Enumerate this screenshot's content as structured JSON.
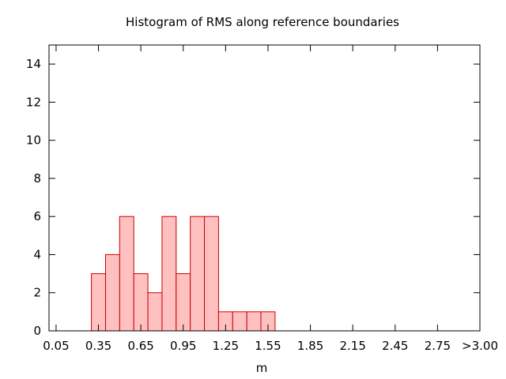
{
  "chart_data": {
    "type": "bar",
    "title": "Histogram of RMS along reference boundaries",
    "xlabel": "m",
    "ylabel": "",
    "x_tick_labels": [
      "0.05",
      "0.35",
      "0.65",
      "0.95",
      "1.25",
      "1.55",
      "1.85",
      "2.15",
      "2.45",
      "2.75",
      ">3.00"
    ],
    "x_tick_values": [
      0.05,
      0.35,
      0.65,
      0.95,
      1.25,
      1.55,
      1.85,
      2.15,
      2.45,
      2.75,
      3.05
    ],
    "y_tick_labels": [
      "0",
      "2",
      "4",
      "6",
      "8",
      "10",
      "12",
      "14"
    ],
    "xlim": [
      0.0,
      3.05
    ],
    "ylim": [
      0,
      15
    ],
    "bin_width": 0.1,
    "bin_starts": [
      0.3,
      0.4,
      0.5,
      0.6,
      0.7,
      0.8,
      0.9,
      1.0,
      1.1,
      1.2,
      1.3,
      1.4,
      1.5
    ],
    "values": [
      3,
      4,
      6,
      3,
      2,
      6,
      3,
      6,
      6,
      1,
      1,
      1,
      1
    ],
    "colors": {
      "fill": "#ffc0c0",
      "stroke": "#cc0000"
    },
    "grid": false
  }
}
